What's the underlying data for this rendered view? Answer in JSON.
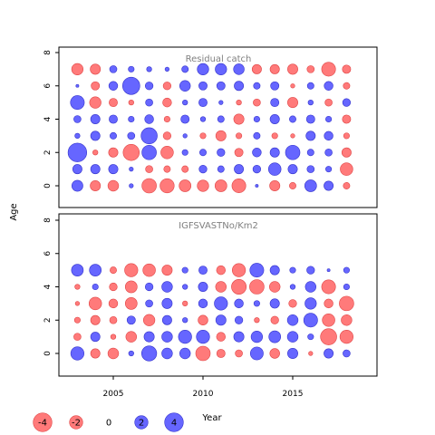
{
  "colors": {
    "positive": "#6666ff",
    "positive_stroke": "#3333cc",
    "negative": "#ff7a7a",
    "negative_stroke": "#e04444",
    "frame": "#000000"
  },
  "chart_data": {
    "type": "scatter",
    "encoding": "bubble residual plot; circle area ~ |value|; blue = positive, red = negative",
    "xlabel": "Year",
    "ylabel": "Age",
    "xlim": [
      2000.8,
      2019.0
    ],
    "ylim": [
      -1.5,
      8.5
    ],
    "x_ticks": [
      2005,
      2010,
      2015
    ],
    "y_ticks": [
      0,
      2,
      4,
      6,
      8
    ],
    "years": [
      2003,
      2004,
      2005,
      2006,
      2007,
      2008,
      2009,
      2010,
      2011,
      2012,
      2013,
      2014,
      2015,
      2016,
      2017,
      2018
    ],
    "ages": [
      0,
      1,
      2,
      3,
      4,
      5,
      6,
      7
    ],
    "legend": [
      {
        "value": -4,
        "label": "-4"
      },
      {
        "value": -2,
        "label": "-2"
      },
      {
        "value": 0,
        "label": "0"
      },
      {
        "value": 2,
        "label": "2"
      },
      {
        "value": 4,
        "label": "4"
      }
    ],
    "panels": [
      {
        "title": "Residual catch",
        "residuals": [
          [
            1.4,
            -1.2,
            -1.3,
            0.2,
            -2.4,
            -2.3,
            -1.6,
            -1.5,
            -1.6,
            -2.2,
            0.1,
            -1.2,
            -0.5,
            1.6,
            1.0,
            -0.5
          ],
          [
            1.0,
            1.0,
            1.0,
            0.2,
            -0.6,
            -0.5,
            -0.5,
            0.7,
            0.5,
            1.0,
            0.7,
            1.8,
            1.0,
            0.6,
            0.4,
            -1.8
          ],
          [
            4.0,
            -0.3,
            -1.0,
            -3.0,
            2.4,
            -1.8,
            0.4,
            0.5,
            0.7,
            -0.8,
            0.9,
            1.0,
            2.4,
            0.5,
            0.6,
            -1.0
          ],
          [
            0.3,
            1.0,
            0.5,
            0.6,
            3.0,
            -0.7,
            0.2,
            -0.4,
            -1.2,
            -0.4,
            0.5,
            -0.4,
            -0.2,
            1.0,
            0.9,
            -0.4
          ],
          [
            0.6,
            1.0,
            0.8,
            0.4,
            0.9,
            -0.4,
            0.8,
            0.3,
            0.5,
            -1.2,
            0.4,
            1.0,
            0.5,
            0.8,
            0.4,
            -0.8
          ],
          [
            2.2,
            -1.5,
            -0.8,
            -0.3,
            0.6,
            -0.9,
            0.3,
            0.8,
            0.2,
            -0.3,
            -0.6,
            0.8,
            -1.2,
            0.3,
            -0.6,
            0.7
          ],
          [
            0.1,
            -0.8,
            0.9,
            3.4,
            0.7,
            -0.7,
            1.3,
            0.8,
            0.8,
            1.0,
            0.5,
            0.8,
            -0.2,
            0.5,
            0.9,
            -0.5
          ],
          [
            -1.5,
            -1.2,
            0.6,
            0.4,
            0.3,
            0.2,
            0.5,
            1.5,
            1.5,
            1.3,
            -1.0,
            -1.0,
            -1.2,
            -0.6,
            -2.2,
            -0.8
          ]
        ]
      },
      {
        "title": "IGFSVASTNo/Km2",
        "residuals": [
          [
            2.0,
            -1.0,
            -1.3,
            0.3,
            2.6,
            1.3,
            1.3,
            -2.4,
            -0.8,
            -0.6,
            1.9,
            -1.1,
            1.2,
            -0.2,
            1.0,
            0.6
          ],
          [
            -0.6,
            1.0,
            -0.3,
            -1.3,
            1.2,
            1.3,
            2.0,
            2.0,
            -0.9,
            1.2,
            1.5,
            1.6,
            1.3,
            0.4,
            -3.0,
            -2.0
          ],
          [
            -0.4,
            -1.0,
            -0.6,
            0.8,
            -1.5,
            1.0,
            0.3,
            -1.1,
            1.2,
            0.7,
            -0.3,
            -0.7,
            1.3,
            2.2,
            -1.8,
            -1.3
          ],
          [
            -0.2,
            -1.8,
            -0.9,
            -1.6,
            0.6,
            1.2,
            -0.3,
            0.9,
            2.0,
            0.9,
            0.4,
            1.0,
            -0.7,
            1.5,
            -0.9,
            -2.4
          ],
          [
            -0.3,
            0.4,
            -0.7,
            -1.6,
            0.7,
            1.3,
            0.3,
            1.0,
            -1.3,
            -2.5,
            -2.4,
            -1.3,
            0.3,
            1.3,
            -2.2,
            0.4
          ],
          [
            1.6,
            1.6,
            -0.5,
            -2.0,
            -1.8,
            -1.2,
            0.4,
            0.8,
            -0.9,
            -2.0,
            2.2,
            1.0,
            0.4,
            0.7,
            0.1,
            0.4
          ]
        ]
      }
    ]
  }
}
